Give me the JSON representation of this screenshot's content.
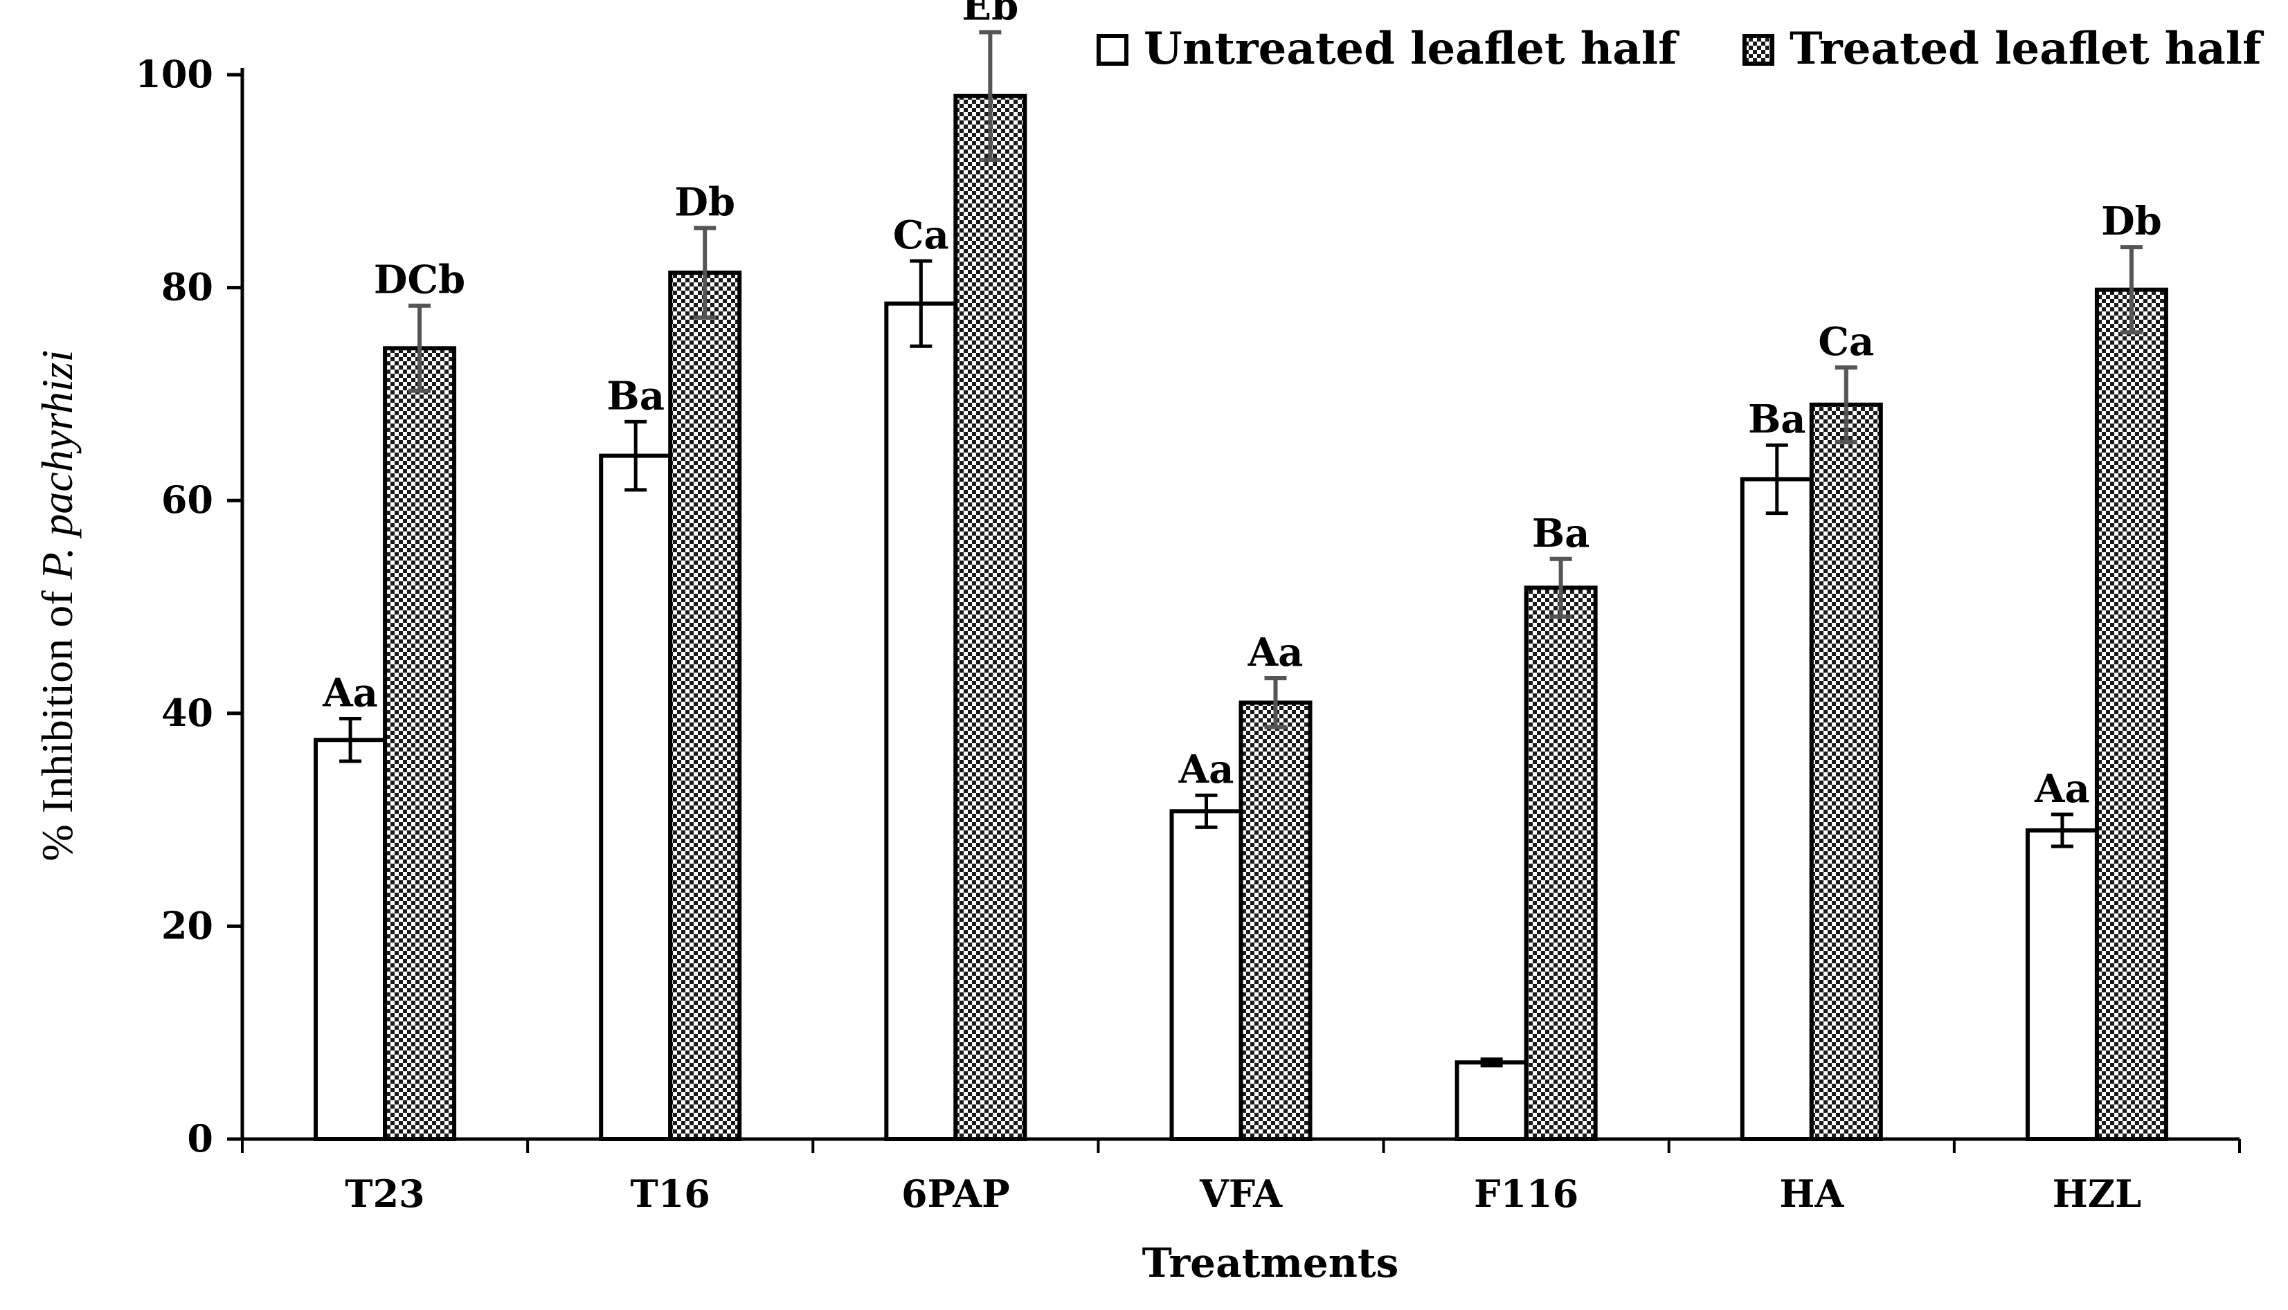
{
  "chart_data": {
    "type": "bar",
    "title": "",
    "xlabel": "Treatments",
    "ylabel": {
      "prefix": "% Inhibition of ",
      "species": "P. pachyrhizi"
    },
    "ylim": [
      0,
      100
    ],
    "yticks": [
      0,
      20,
      40,
      60,
      80,
      100
    ],
    "grid": false,
    "legend_position": "top-right",
    "categories": [
      "T23",
      "T16",
      "6PAP",
      "VFA",
      "F116",
      "HA",
      "HZL"
    ],
    "series": [
      {
        "name": "Untreated leaflet half",
        "pattern": "open",
        "values": [
          37.5,
          64.2,
          78.5,
          30.8,
          7.2,
          62.0,
          29.0
        ],
        "errors": [
          2.0,
          3.2,
          4.0,
          1.5,
          0.3,
          3.2,
          1.5
        ],
        "labels": [
          "Aa",
          "Ba",
          "Ca",
          "Aa",
          "",
          "Ba",
          "Aa"
        ]
      },
      {
        "name": "Treated leaflet half",
        "pattern": "checkered",
        "values": [
          74.3,
          81.4,
          98.0,
          41.0,
          51.8,
          69.0,
          79.8
        ],
        "errors": [
          4.0,
          4.2,
          6.0,
          2.3,
          2.7,
          3.5,
          4.0
        ],
        "labels": [
          "DCb",
          "Db",
          "Eb",
          "Aa",
          "Ba",
          "Ca",
          "Db"
        ]
      }
    ]
  }
}
